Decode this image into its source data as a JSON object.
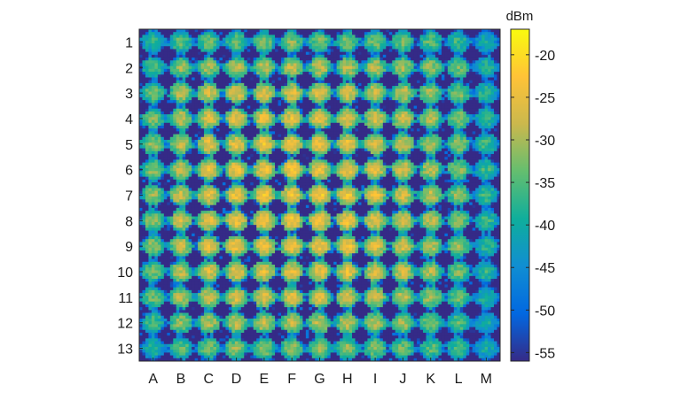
{
  "chart_data": {
    "type": "heatmap",
    "title": "",
    "xlabel": "",
    "ylabel": "",
    "x_categories": [
      "A",
      "B",
      "C",
      "D",
      "E",
      "F",
      "G",
      "H",
      "I",
      "J",
      "K",
      "L",
      "M"
    ],
    "y_categories": [
      "1",
      "2",
      "3",
      "4",
      "5",
      "6",
      "7",
      "8",
      "9",
      "10",
      "11",
      "12",
      "13"
    ],
    "colorbar": {
      "label": "dBm",
      "range": [
        -56,
        -17
      ],
      "ticks": [
        -20,
        -25,
        -30,
        -35,
        -40,
        -45,
        -50,
        -55
      ],
      "tick_labels": [
        "-20",
        "-25",
        "-30",
        "-35",
        "-40",
        "-45",
        "-50",
        "-55"
      ],
      "colormap": "parula",
      "colors": [
        "#352a87",
        "#0268e1",
        "#108ed2",
        "#0fae9c",
        "#64be6f",
        "#cbb84d",
        "#ffc337",
        "#f9fb0e"
      ]
    },
    "background_dbm": -56,
    "element_peak_dbm": [
      [
        -37,
        -34,
        -33,
        -33,
        -32,
        -32,
        -32,
        -32,
        -33,
        -33,
        -34,
        -36,
        -40
      ],
      [
        -35,
        -31,
        -30,
        -29,
        -29,
        -28,
        -28,
        -28,
        -29,
        -30,
        -31,
        -33,
        -38
      ],
      [
        -33,
        -29,
        -27,
        -26,
        -26,
        -26,
        -25,
        -26,
        -27,
        -28,
        -30,
        -32,
        -37
      ],
      [
        -32,
        -28,
        -26,
        -25,
        -25,
        -25,
        -25,
        -25,
        -26,
        -27,
        -29,
        -31,
        -36
      ],
      [
        -31,
        -28,
        -25,
        -25,
        -24,
        -24,
        -24,
        -24,
        -25,
        -27,
        -29,
        -31,
        -36
      ],
      [
        -31,
        -28,
        -25,
        -24,
        -24,
        -23,
        -24,
        -24,
        -25,
        -26,
        -28,
        -31,
        -36
      ],
      [
        -31,
        -27,
        -25,
        -24,
        -23,
        -23,
        -23,
        -24,
        -25,
        -26,
        -28,
        -31,
        -36
      ],
      [
        -31,
        -27,
        -25,
        -24,
        -23,
        -23,
        -23,
        -24,
        -25,
        -26,
        -28,
        -31,
        -36
      ],
      [
        -31,
        -28,
        -25,
        -24,
        -24,
        -24,
        -24,
        -24,
        -25,
        -27,
        -29,
        -31,
        -37
      ],
      [
        -32,
        -28,
        -26,
        -25,
        -25,
        -25,
        -25,
        -25,
        -26,
        -27,
        -29,
        -32,
        -37
      ],
      [
        -33,
        -29,
        -27,
        -26,
        -26,
        -26,
        -26,
        -26,
        -27,
        -28,
        -30,
        -33,
        -38
      ],
      [
        -35,
        -31,
        -29,
        -28,
        -28,
        -28,
        -28,
        -28,
        -29,
        -30,
        -32,
        -34,
        -39
      ],
      [
        -38,
        -34,
        -32,
        -31,
        -31,
        -31,
        -31,
        -31,
        -32,
        -33,
        -34,
        -36,
        -40
      ]
    ]
  }
}
